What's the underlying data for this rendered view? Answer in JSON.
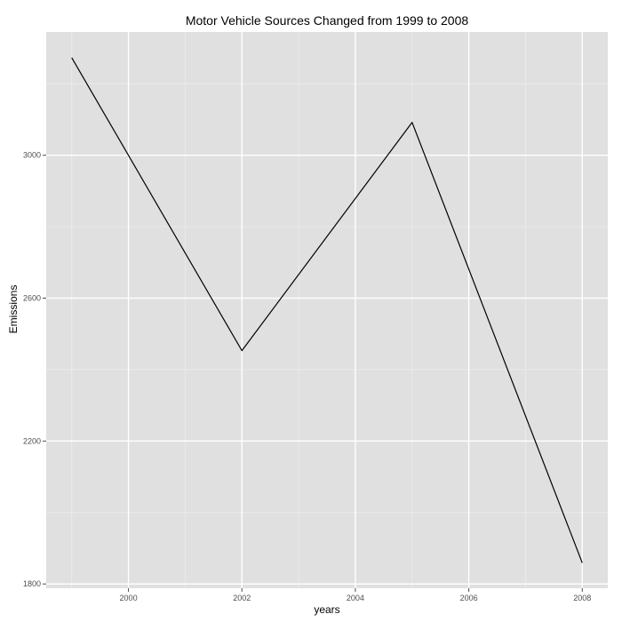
{
  "chart_data": {
    "type": "line",
    "title": "Motor Vehicle Sources Changed from 1999 to 2008",
    "xlabel": "years",
    "ylabel": "Emissions",
    "x": [
      1999,
      2002,
      2005,
      2008
    ],
    "series": [
      {
        "values": [
          3273,
          2453,
          3092,
          1859
        ]
      }
    ],
    "xlim": [
      1998.55,
      2008.45
    ],
    "ylim": [
      1788,
      3345
    ],
    "x_ticks": [
      2000,
      2002,
      2004,
      2006,
      2008
    ],
    "x_tick_labels": [
      "2000",
      "2002",
      "2004",
      "2006",
      "2008"
    ],
    "x_minor_ticks": [
      1999,
      2001,
      2003,
      2005,
      2007
    ],
    "y_ticks": [
      1800,
      2200,
      2600,
      3000
    ],
    "y_tick_labels": [
      "1800",
      "2200",
      "2600",
      "3000"
    ],
    "y_minor_ticks": [
      2000,
      2400,
      2800,
      3200
    ],
    "grid": true,
    "legend": "none",
    "colors": {
      "panel_background": "#e0e0e0",
      "grid_major": "#ffffff",
      "grid_minor": "#ededed",
      "line": "#000000",
      "tick_label": "#4d4d4d",
      "tick_mark": "#4d4d4d"
    }
  }
}
